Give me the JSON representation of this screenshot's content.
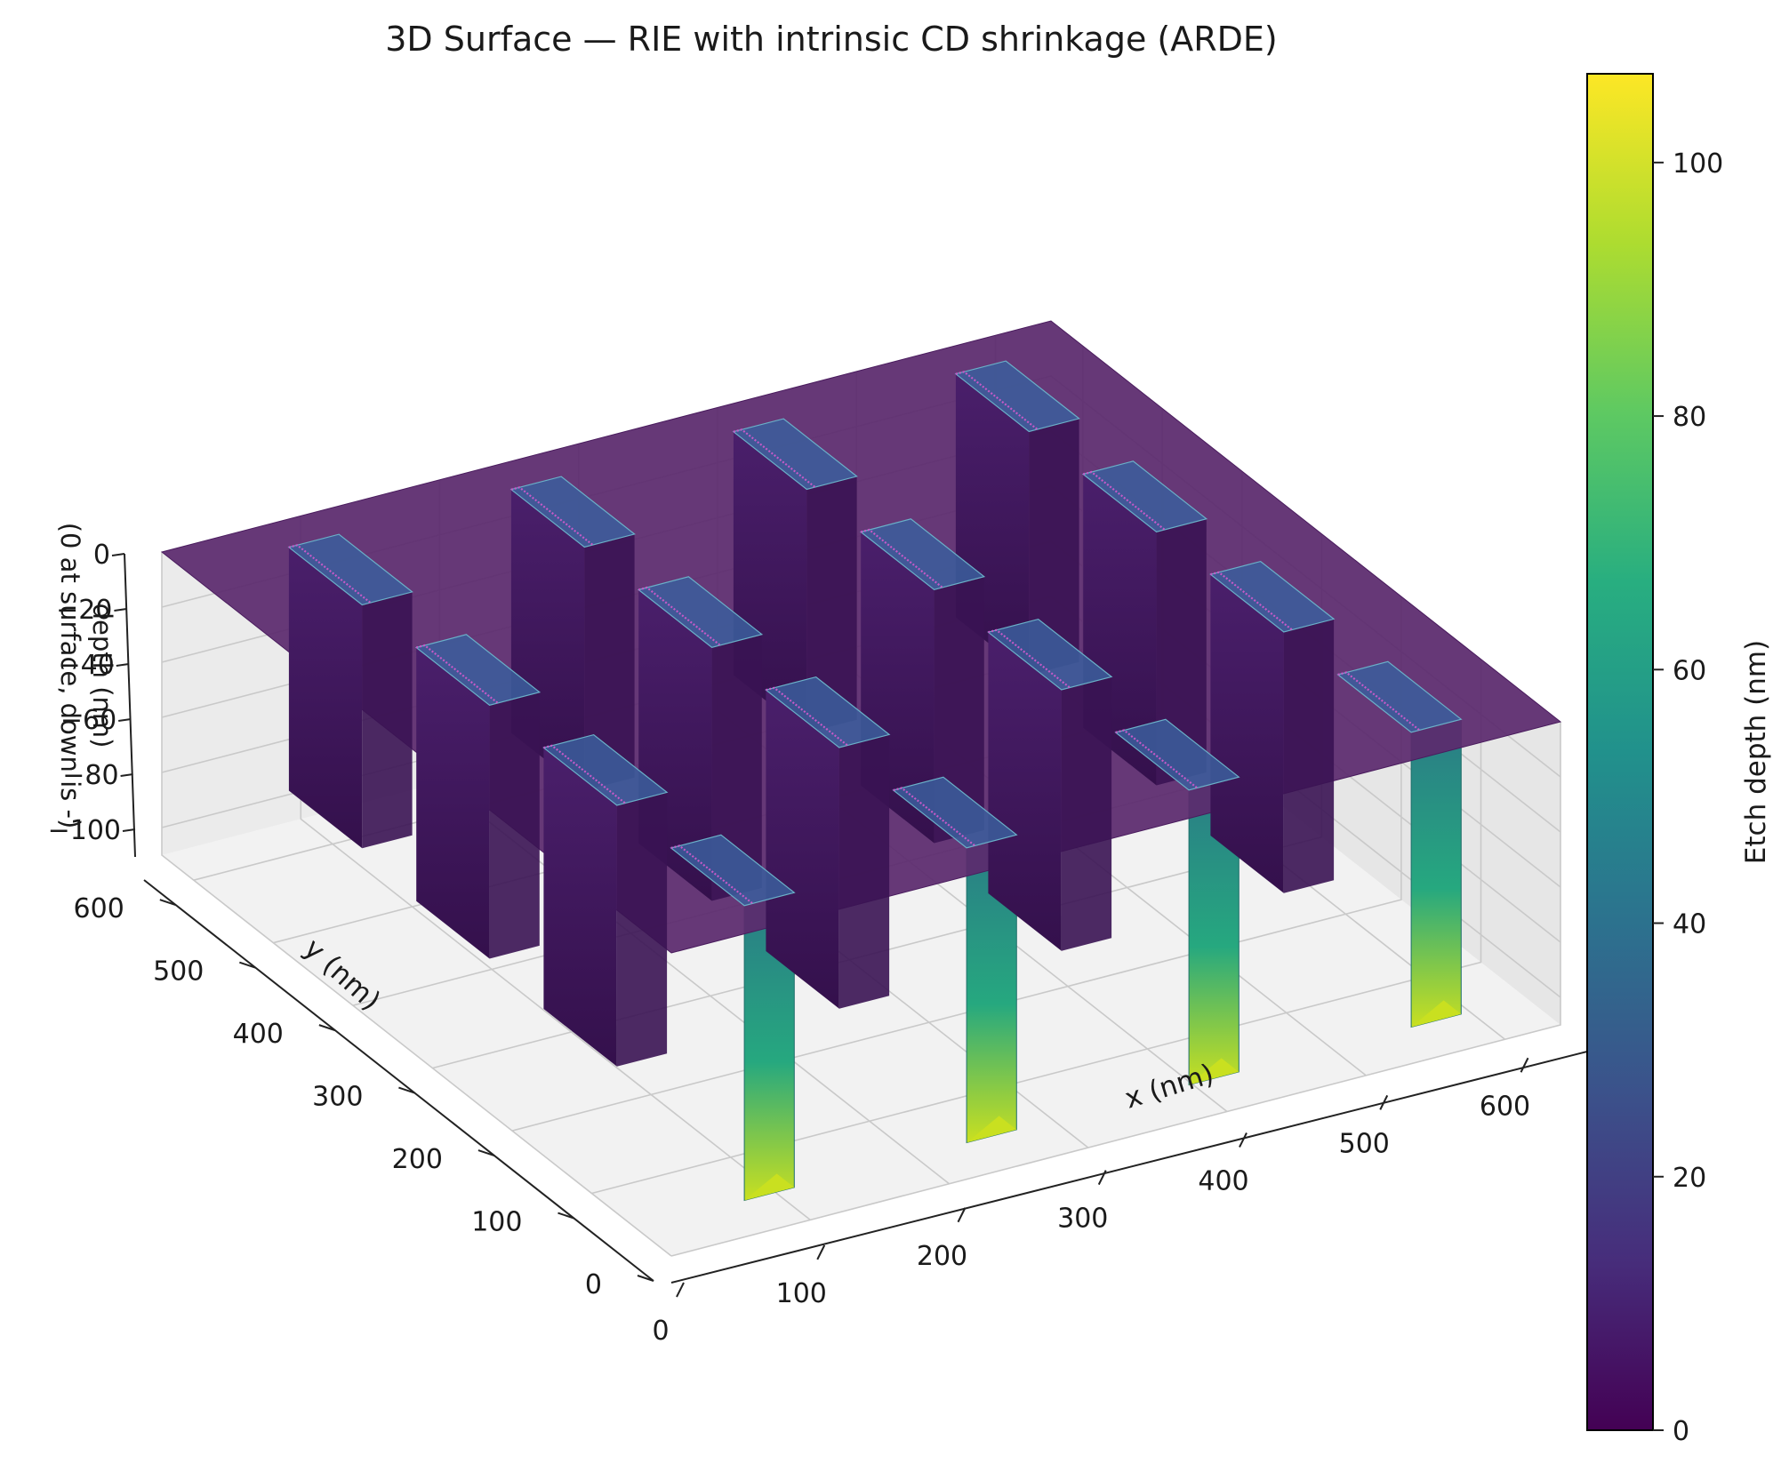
{
  "chart_data": {
    "type": "surface3d",
    "title": "3D Surface — RIE with intrinsic CD shrinkage (ARDE)",
    "xlabel": "x (nm)",
    "ylabel": "y (nm)",
    "zlabel": "depth (nm)\n(0 at surface, down is -)",
    "xlim": [
      0,
      640
    ],
    "ylim": [
      0,
      640
    ],
    "zlim": [
      -110,
      0
    ],
    "x_ticks": [
      "0",
      "100",
      "200",
      "300",
      "400",
      "500",
      "600"
    ],
    "y_ticks": [
      "0",
      "100",
      "200",
      "300",
      "400",
      "500",
      "600"
    ],
    "z_ticks": [
      "0",
      "−20",
      "−40",
      "−60",
      "−80",
      "−100"
    ],
    "grid": true,
    "colormap": "viridis",
    "colorbar": {
      "label": "Etch depth (nm)",
      "range": [
        0,
        107
      ],
      "ticks": [
        "0",
        "20",
        "40",
        "60",
        "80",
        "100"
      ]
    },
    "surface_level_nm": 0,
    "trench_array": {
      "rows": 4,
      "cols": 4,
      "trenches": [
        {
          "x": 90,
          "y": 560,
          "depth": 96
        },
        {
          "x": 250,
          "y": 560,
          "depth": 96
        },
        {
          "x": 410,
          "y": 560,
          "depth": 96
        },
        {
          "x": 570,
          "y": 560,
          "depth": 96
        },
        {
          "x": 90,
          "y": 400,
          "depth": 100
        },
        {
          "x": 250,
          "y": 400,
          "depth": 100
        },
        {
          "x": 410,
          "y": 400,
          "depth": 100
        },
        {
          "x": 570,
          "y": 400,
          "depth": 100
        },
        {
          "x": 90,
          "y": 240,
          "depth": 103
        },
        {
          "x": 250,
          "y": 240,
          "depth": 103
        },
        {
          "x": 410,
          "y": 240,
          "depth": 103
        },
        {
          "x": 570,
          "y": 240,
          "depth": 103
        },
        {
          "x": 90,
          "y": 80,
          "depth": 107
        },
        {
          "x": 250,
          "y": 80,
          "depth": 107
        },
        {
          "x": 410,
          "y": 80,
          "depth": 107
        },
        {
          "x": 570,
          "y": 80,
          "depth": 107
        }
      ]
    }
  },
  "colors": {
    "surface": "#5b2a6e",
    "wall_dark": "#3c1457",
    "wall_top": "#3b5e9c",
    "deep_green": "#26a87f",
    "deep_yellow": "#c9e020"
  }
}
